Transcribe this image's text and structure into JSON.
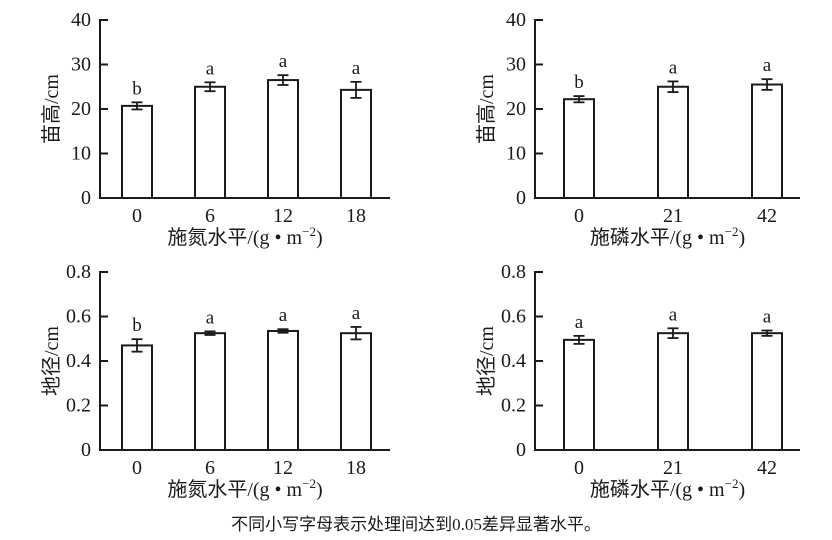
{
  "figure": {
    "caption": "不同小写字母表示处理间达到0.05差异显著水平。"
  },
  "chart_data": [
    {
      "type": "bar",
      "position": "top-left",
      "ylabel": "苗高/cm",
      "xlabel_pre": "施氮水平/(g • m",
      "xlabel_sup": "−2",
      "xlabel_post": ")",
      "categories": [
        "0",
        "6",
        "12",
        "18"
      ],
      "values": [
        20.7,
        25.0,
        26.5,
        24.3
      ],
      "errors": [
        0.8,
        1.0,
        1.1,
        1.8
      ],
      "sig_letters": [
        "b",
        "a",
        "a",
        "a"
      ],
      "ylim": [
        0,
        40
      ],
      "yticks": [
        0,
        10,
        20,
        30,
        40
      ],
      "ytick_labels": [
        "0",
        "10",
        "20",
        "30",
        "40"
      ],
      "grid": false,
      "legend": null
    },
    {
      "type": "bar",
      "position": "top-right",
      "ylabel": "苗高/cm",
      "xlabel_pre": "施磷水平/(g • m",
      "xlabel_sup": "−2",
      "xlabel_post": ")",
      "categories": [
        "0",
        "21",
        "42"
      ],
      "values": [
        22.2,
        25.0,
        25.5
      ],
      "errors": [
        0.7,
        1.2,
        1.2
      ],
      "sig_letters": [
        "b",
        "a",
        "a"
      ],
      "ylim": [
        0,
        40
      ],
      "yticks": [
        0,
        10,
        20,
        30,
        40
      ],
      "ytick_labels": [
        "0",
        "10",
        "20",
        "30",
        "40"
      ],
      "grid": false,
      "legend": null
    },
    {
      "type": "bar",
      "position": "bottom-left",
      "ylabel": "地径/cm",
      "xlabel_pre": "施氮水平/(g • m",
      "xlabel_sup": "−2",
      "xlabel_post": ")",
      "categories": [
        "0",
        "6",
        "12",
        "18"
      ],
      "values": [
        0.47,
        0.525,
        0.535,
        0.525
      ],
      "errors": [
        0.028,
        0.008,
        0.008,
        0.028
      ],
      "sig_letters": [
        "b",
        "a",
        "a",
        "a"
      ],
      "ylim": [
        0,
        0.8
      ],
      "yticks": [
        0,
        0.2,
        0.4,
        0.6,
        0.8
      ],
      "ytick_labels": [
        "0",
        "0.2",
        "0.4",
        "0.6",
        "0.8"
      ],
      "grid": false,
      "legend": null
    },
    {
      "type": "bar",
      "position": "bottom-right",
      "ylabel": "地径/cm",
      "xlabel_pre": "施磷水平/(g • m",
      "xlabel_sup": "−2",
      "xlabel_post": ")",
      "categories": [
        "0",
        "21",
        "42"
      ],
      "values": [
        0.495,
        0.525,
        0.525
      ],
      "errors": [
        0.018,
        0.022,
        0.012
      ],
      "sig_letters": [
        "a",
        "a",
        "a"
      ],
      "ylim": [
        0,
        0.8
      ],
      "yticks": [
        0,
        0.2,
        0.4,
        0.6,
        0.8
      ],
      "ytick_labels": [
        "0",
        "0.2",
        "0.4",
        "0.6",
        "0.8"
      ],
      "grid": false,
      "legend": null
    }
  ]
}
